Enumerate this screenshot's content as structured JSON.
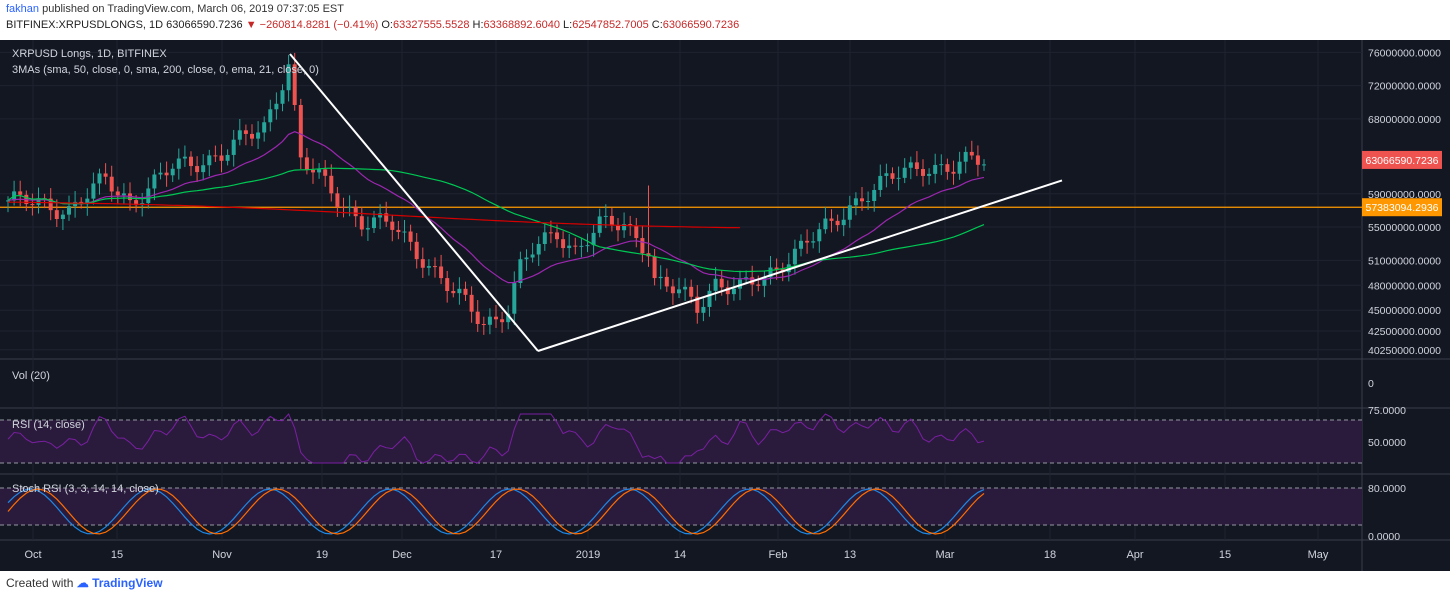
{
  "header": {
    "author": "fakhan",
    "published": "published on TradingView.com, March 06, 2019 07:37:05 EST",
    "symbol": "BITFINEX:XRPUSDLONGS, 1D",
    "last": "63066590.7236",
    "change": "−260814.8281 (−0.41%)",
    "open": "63327555.5528",
    "high": "63368892.6040",
    "low": "62547852.7005",
    "close": "63066590.7236",
    "open_label": "O:",
    "high_label": "H:",
    "low_label": "L:",
    "close_label": "C:"
  },
  "footer": {
    "created_with": "Created with",
    "brand": "TradingView"
  },
  "colors": {
    "background": "#131722",
    "up": "#26a69a",
    "down": "#ef5350",
    "sma50": "#00c853",
    "sma200": "#d50000",
    "ema21": "#9c27b0",
    "trendline": "#ffffff",
    "hline": "#ff9800",
    "rsi": "#7b1fa2",
    "stoch_k": "#1e88e5",
    "stoch_d": "#ff6d00"
  },
  "panes": {
    "price_label": "XRPUSD Longs, 1D, BITFINEX",
    "mas_label": "3MAs (sma, 50, close, 0, sma, 200, close, 0, ema, 21, close, 0)",
    "vol_label": "Vol (20)",
    "rsi_label": "RSI (14, close)",
    "stoch_label": "Stoch RSI (3, 3, 14, 14, close)"
  },
  "chart_data": {
    "type": "candlestick",
    "title": "XRPUSD Longs, 1D, BITFINEX",
    "x_ticks": [
      "Oct",
      "15",
      "Nov",
      "19",
      "Dec",
      "17",
      "2019",
      "14",
      "Feb",
      "13",
      "Mar",
      "18",
      "Apr",
      "15",
      "May"
    ],
    "y_ticks": [
      "76000000.0000",
      "72000000.0000",
      "68000000.0000",
      "63066590.7236",
      "59000000.0000",
      "57383094.2936",
      "55000000.0000",
      "51000000.0000",
      "48000000.0000",
      "45000000.0000",
      "42500000.0000",
      "40250000.0000"
    ],
    "ylim": [
      39500000,
      77000000
    ],
    "price_badges": [
      {
        "label": "63066590.7236",
        "value": 63066590.7236,
        "color": "#ef5350"
      },
      {
        "label": "57383094.2936",
        "value": 57383094.2936,
        "color": "#ff9800"
      }
    ],
    "horizontal_line": 57383094.2936,
    "trendlines": [
      {
        "from": [
          "Nov 13",
          75800000
        ],
        "to": [
          "Dec 23",
          40100000
        ]
      },
      {
        "from": [
          "Dec 23",
          40100000
        ],
        "to": [
          "Mar 20",
          60600000
        ]
      }
    ],
    "volume": {
      "ticks": [
        "0"
      ]
    },
    "rsi": {
      "ticks": [
        "75.0000",
        "50.0000"
      ],
      "levels": [
        70,
        30
      ]
    },
    "stoch_rsi": {
      "ticks": [
        "80.0000",
        "0.0000"
      ],
      "levels": [
        80,
        20
      ]
    }
  }
}
